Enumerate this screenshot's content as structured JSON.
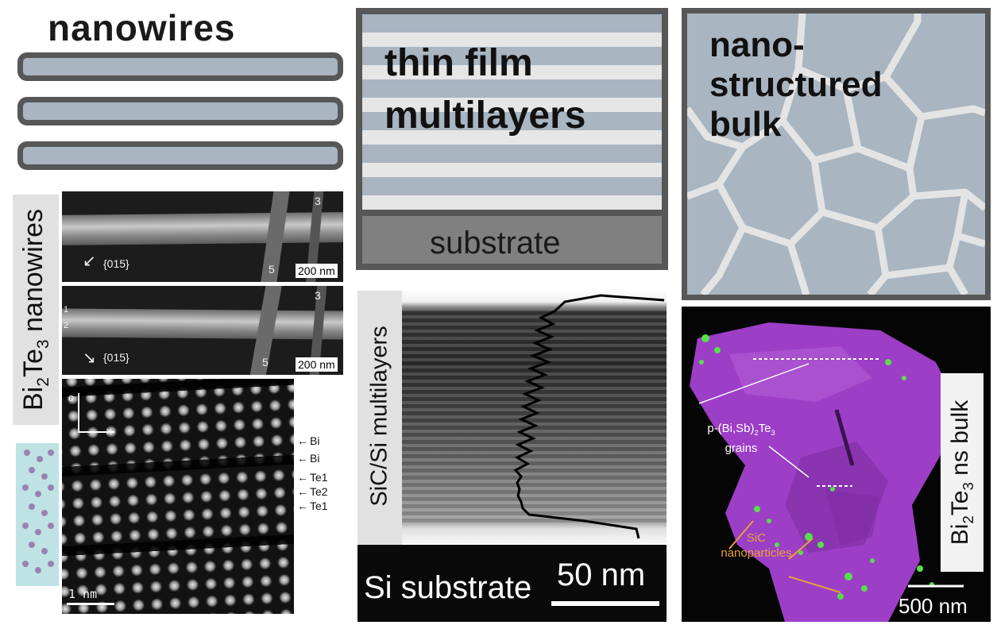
{
  "panels": {
    "nanowires": {
      "title": "nanowires"
    },
    "thin_film": {
      "title_line1": "thin film",
      "title_line2": "multilayers",
      "substrate_label": "substrate"
    },
    "nano_bulk": {
      "title_line1": "nano-",
      "title_line2": "structured",
      "title_line3": "bulk"
    }
  },
  "bi2te3_nanowires": {
    "side_label_prefix": "Bi",
    "side_sub1": "2",
    "side_mid": "Te",
    "side_sub2": "3",
    "side_suffix": " nanowires",
    "img1": {
      "direction": "{015}",
      "rod_a": "5",
      "rod_b": "3",
      "scale": "200 nm"
    },
    "img2": {
      "direction": "{015}",
      "rod_a": "5",
      "rod_b": "3",
      "left_a": "1",
      "left_b": "2",
      "scale": "200 nm"
    }
  },
  "hrtem": {
    "axis_c": "c",
    "axis_x": "x",
    "scale": "1 nm",
    "atom_labels": [
      "Bi",
      "Bi",
      "Te1",
      "Te2",
      "Te1"
    ]
  },
  "sic_si": {
    "side_label": "SiC/Si multilayers",
    "substrate_label": "Si substrate",
    "scale": "50 nm"
  },
  "bulk_image": {
    "side_label_prefix": "Bi",
    "side_sub1": "2",
    "side_mid": "Te",
    "side_sub2": "3",
    "side_suffix": " ns bulk",
    "grains_prefix": "p-(Bi,Sb)",
    "grains_sub1": "2",
    "grains_mid": "Te",
    "grains_sub2": "3",
    "grains_line2": "grains",
    "sic_line1": "SiC",
    "sic_line2": "nanoparticles",
    "scale": "500 nm"
  },
  "colors": {
    "gray_blue": "#a9b5c1",
    "dark_frame": "#575757",
    "grain_border": "#e4e4e4",
    "magenta": "#9c3ec6",
    "sic_green": "#56e04a",
    "orange_label": "#e6a23a"
  }
}
